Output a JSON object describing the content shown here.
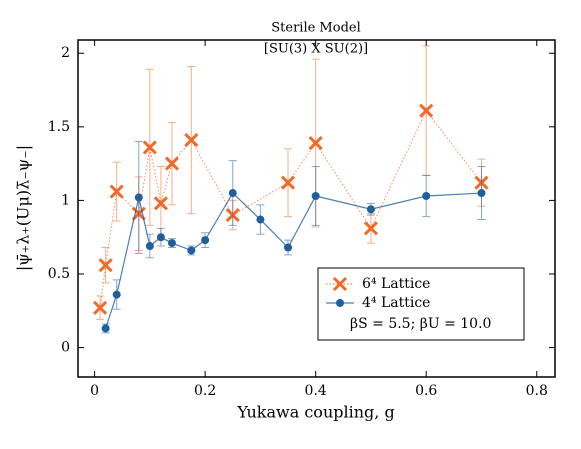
{
  "chart_data": {
    "type": "line",
    "title": "Sterile Model",
    "subtitle": "[SU(3) X SU(2)]",
    "x_label": "Yukawa coupling, g",
    "y_label": "|ψ̄₊λ₊(Uμ)λ̄₋ψ₋|",
    "annotation": "βS = 5.5; βU = 10.0",
    "legend": "lower right",
    "xlim": [
      -0.03,
      0.833
    ],
    "ylim": [
      -0.2,
      2.09
    ],
    "xticks": [
      0,
      0.2,
      0.4,
      0.6,
      0.8
    ],
    "yticks": [
      0,
      0.5,
      1,
      1.5,
      2
    ],
    "series": [
      {
        "name": "6⁴ Lattice",
        "color": "#f26a2a",
        "marker": "x",
        "linestyle": "dotted",
        "x": [
          0.01,
          0.02,
          0.04,
          0.08,
          0.1,
          0.12,
          0.14,
          0.175,
          0.25,
          0.35,
          0.4,
          0.5,
          0.6,
          0.7
        ],
        "values": [
          0.27,
          0.56,
          1.06,
          0.91,
          1.36,
          0.98,
          1.25,
          1.41,
          0.9,
          1.12,
          1.39,
          0.81,
          1.61,
          1.12
        ],
        "errors": [
          0.08,
          0.12,
          0.2,
          0.25,
          0.53,
          0.25,
          0.28,
          0.5,
          0.1,
          0.23,
          0.57,
          0.1,
          0.44,
          0.16
        ]
      },
      {
        "name": "4⁴ Lattice",
        "color": "#1f5f9e",
        "marker": "o",
        "linestyle": "solid",
        "x": [
          0.02,
          0.04,
          0.08,
          0.1,
          0.12,
          0.14,
          0.175,
          0.2,
          0.25,
          0.3,
          0.35,
          0.4,
          0.5,
          0.6,
          0.7
        ],
        "values": [
          0.13,
          0.36,
          1.02,
          0.69,
          0.75,
          0.71,
          0.66,
          0.73,
          1.05,
          0.87,
          0.68,
          1.03,
          0.94,
          1.03,
          1.05
        ],
        "errors": [
          0.03,
          0.1,
          0.38,
          0.08,
          0.06,
          0.03,
          0.03,
          0.05,
          0.22,
          0.1,
          0.05,
          0.2,
          0.04,
          0.14,
          0.18
        ]
      }
    ]
  }
}
